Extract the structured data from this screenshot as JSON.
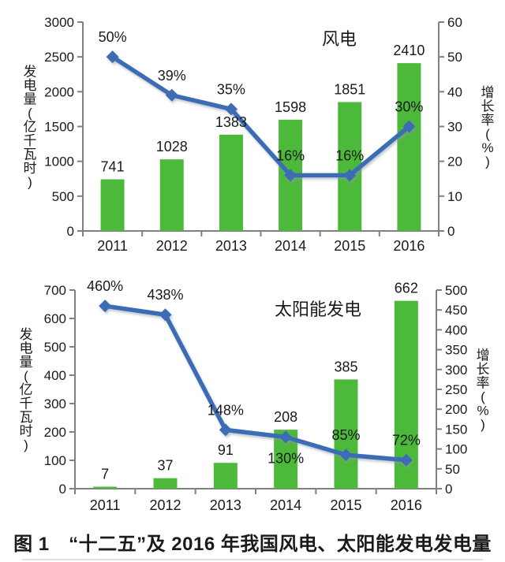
{
  "caption": "图 1　“十二五”及 2016 年我国风电、太阳能发电发电量",
  "colors": {
    "bar": "#4CB93B",
    "line": "#3A6CB4",
    "axis": "#808080",
    "text": "#1A1A1A"
  },
  "chart_data": [
    {
      "id": "wind",
      "type": "bar+line",
      "title": "风电",
      "categories": [
        "2011",
        "2012",
        "2013",
        "2014",
        "2015",
        "2016"
      ],
      "series": [
        {
          "name": "发电量",
          "kind": "bar",
          "axis": "left",
          "values": [
            741,
            1028,
            1383,
            1598,
            1851,
            2410
          ],
          "labels": [
            "741",
            "1028",
            "1383",
            "1598",
            "1851",
            "2410"
          ]
        },
        {
          "name": "增长率",
          "kind": "line",
          "axis": "right",
          "values": [
            50,
            39,
            35,
            16,
            16,
            30
          ],
          "labels": [
            "50%",
            "39%",
            "35%",
            "16%",
            "16%",
            "30%"
          ],
          "label_positions": [
            "above",
            "above",
            "above",
            "above",
            "above",
            "above"
          ]
        }
      ],
      "left_axis": {
        "title": "发电量(亿千瓦时)",
        "min": 0,
        "max": 3000,
        "step": 500
      },
      "right_axis": {
        "title": "增长率(%)",
        "min": 0,
        "max": 60,
        "step": 10
      },
      "grid": false,
      "legend": "none"
    },
    {
      "id": "solar",
      "type": "bar+line",
      "title": "太阳能发电",
      "categories": [
        "2011",
        "2012",
        "2013",
        "2014",
        "2015",
        "2016"
      ],
      "series": [
        {
          "name": "发电量",
          "kind": "bar",
          "axis": "left",
          "values": [
            7,
            37,
            91,
            208,
            385,
            662
          ],
          "labels": [
            "7",
            "37",
            "91",
            "208",
            "385",
            "662"
          ]
        },
        {
          "name": "增长率",
          "kind": "line",
          "axis": "right",
          "values": [
            460,
            438,
            148,
            130,
            85,
            72
          ],
          "labels": [
            "460%",
            "438%",
            "148%",
            "130%",
            "85%",
            "72%"
          ],
          "label_positions": [
            "above",
            "above",
            "above",
            "below",
            "above",
            "above"
          ]
        }
      ],
      "left_axis": {
        "title": "发电量(亿千瓦时)",
        "min": 0,
        "max": 700,
        "step": 100
      },
      "right_axis": {
        "title": "增长率(%)",
        "min": 0,
        "max": 500,
        "step": 50
      },
      "grid": false,
      "legend": "none"
    }
  ]
}
